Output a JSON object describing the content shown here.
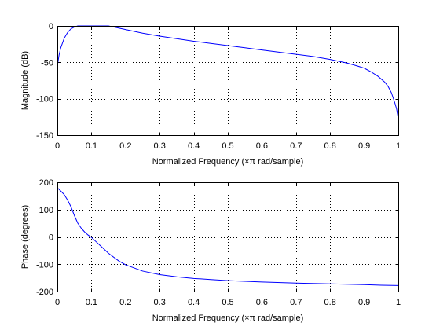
{
  "chart_data": [
    {
      "type": "line",
      "xlabel": "Normalized Frequency  (×π rad/sample)",
      "ylabel": "Magnitude (dB)",
      "xlim": [
        0,
        1
      ],
      "ylim": [
        -150,
        0
      ],
      "xticks": [
        0,
        0.1,
        0.2,
        0.3,
        0.4,
        0.5,
        0.6,
        0.7,
        0.8,
        0.9,
        1
      ],
      "xtick_labels": [
        "0",
        "0.1",
        "0.2",
        "0.3",
        "0.4",
        "0.5",
        "0.6",
        "0.7",
        "0.8",
        "0.9",
        "1"
      ],
      "yticks": [
        -150,
        -100,
        -50,
        0
      ],
      "ytick_labels": [
        "-150",
        "-100",
        "-50",
        "0"
      ],
      "grid": true,
      "line_color": "#0000ff",
      "series": [
        {
          "x": [
            0,
            0.005,
            0.01,
            0.02,
            0.03,
            0.04,
            0.05,
            0.06,
            0.07,
            0.08,
            0.09,
            0.1,
            0.11,
            0.12,
            0.13,
            0.14,
            0.15,
            0.16,
            0.18,
            0.2,
            0.25,
            0.3,
            0.35,
            0.4,
            0.45,
            0.5,
            0.55,
            0.6,
            0.65,
            0.7,
            0.75,
            0.8,
            0.85,
            0.88,
            0.9,
            0.92,
            0.94,
            0.96,
            0.97,
            0.98,
            0.985,
            0.99,
            0.995,
            1.0
          ],
          "y": [
            -55,
            -40,
            -30,
            -17,
            -9,
            -4,
            -1.5,
            0,
            0.5,
            0.8,
            1,
            1,
            1,
            1,
            0.9,
            0.6,
            0,
            -1,
            -3,
            -5,
            -10,
            -14,
            -17.5,
            -21,
            -24,
            -27,
            -30,
            -33,
            -36,
            -39,
            -42,
            -46,
            -51,
            -55,
            -58,
            -63,
            -69,
            -77,
            -83,
            -92,
            -99,
            -106,
            -114,
            -127
          ]
        }
      ]
    },
    {
      "type": "line",
      "xlabel": "Normalized Frequency  (×π rad/sample)",
      "ylabel": "Phase (degrees)",
      "xlim": [
        0,
        1
      ],
      "ylim": [
        -200,
        200
      ],
      "xticks": [
        0,
        0.1,
        0.2,
        0.3,
        0.4,
        0.5,
        0.6,
        0.7,
        0.8,
        0.9,
        1
      ],
      "xtick_labels": [
        "0",
        "0.1",
        "0.2",
        "0.3",
        "0.4",
        "0.5",
        "0.6",
        "0.7",
        "0.8",
        "0.9",
        "1"
      ],
      "yticks": [
        -200,
        -100,
        0,
        100,
        200
      ],
      "ytick_labels": [
        "-200",
        "-100",
        "0",
        "100",
        "200"
      ],
      "grid": true,
      "line_color": "#0000ff",
      "series": [
        {
          "x": [
            0,
            0.01,
            0.02,
            0.03,
            0.04,
            0.05,
            0.06,
            0.07,
            0.08,
            0.09,
            0.1,
            0.12,
            0.15,
            0.18,
            0.2,
            0.25,
            0.3,
            0.35,
            0.4,
            0.45,
            0.5,
            0.6,
            0.7,
            0.8,
            0.9,
            0.95,
            1.0
          ],
          "y": [
            180,
            168,
            155,
            135,
            110,
            78,
            50,
            32,
            18,
            7,
            -2,
            -25,
            -60,
            -88,
            -102,
            -125,
            -138,
            -146,
            -152,
            -156,
            -160,
            -165,
            -169,
            -172,
            -175,
            -177,
            -178
          ]
        }
      ]
    }
  ]
}
